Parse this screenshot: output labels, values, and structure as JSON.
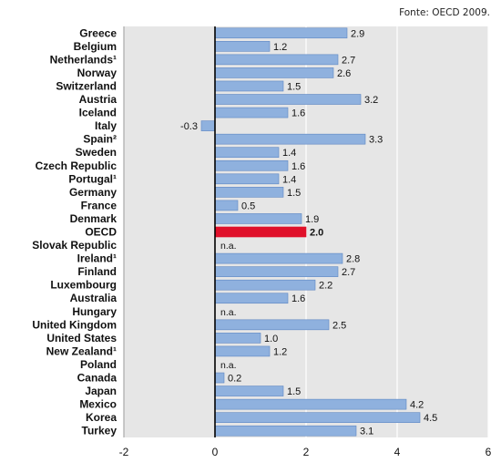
{
  "source": "Fonte: OECD 2009.",
  "chart_data": {
    "type": "bar",
    "orientation": "horizontal",
    "highlight_category": "OECD",
    "categories": [
      "Greece",
      "Belgium",
      "Netherlands¹",
      "Norway",
      "Switzerland",
      "Austria",
      "Iceland",
      "Italy",
      "Spain²",
      "Sweden",
      "Czech Republic",
      "Portugal¹",
      "Germany",
      "France",
      "Denmark",
      "OECD",
      "Slovak Republic",
      "Ireland¹",
      "Finland",
      "Luxembourg",
      "Australia",
      "Hungary",
      "United Kingdom",
      "United States",
      "New Zealand¹",
      "Poland",
      "Canada",
      "Japan",
      "Mexico",
      "Korea",
      "Turkey"
    ],
    "values": [
      2.9,
      1.2,
      2.7,
      2.6,
      1.5,
      3.2,
      1.6,
      -0.3,
      3.3,
      1.4,
      1.6,
      1.4,
      1.5,
      0.5,
      1.9,
      2.0,
      null,
      2.8,
      2.7,
      2.2,
      1.6,
      null,
      2.5,
      1.0,
      1.2,
      null,
      0.2,
      1.5,
      4.2,
      4.5,
      3.1
    ],
    "value_labels": [
      "2.9",
      "1.2",
      "2.7",
      "2.6",
      "1.5",
      "3.2",
      "1.6",
      "-0.3",
      "3.3",
      "1.4",
      "1.6",
      "1.4",
      "1.5",
      "0.5",
      "1.9",
      "2.0",
      "n.a.",
      "2.8",
      "2.7",
      "2.2",
      "1.6",
      "n.a.",
      "2.5",
      "1.0",
      "1.2",
      "n.a.",
      "0.2",
      "1.5",
      "4.2",
      "4.5",
      "3.1"
    ],
    "xlim": [
      -2,
      6
    ],
    "xticks": [
      "-2",
      "0",
      "2",
      "4",
      "6"
    ],
    "colors": {
      "bar": "#8fb1de",
      "bar_edge": "#5d86c2",
      "highlight": "#e0102a",
      "background": "#e6e6e6",
      "grid": "#ffffff",
      "zero_line": "#000000"
    }
  }
}
